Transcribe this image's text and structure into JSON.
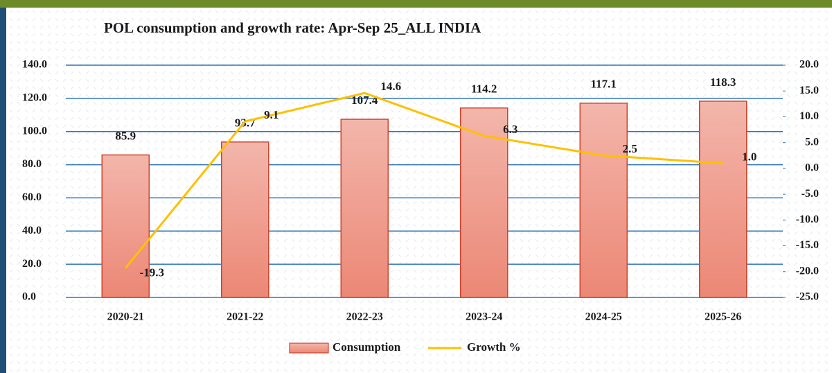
{
  "chart_data": {
    "type": "bar_line",
    "title": "POL consumption and growth rate: Apr-Sep 25_ALL INDIA",
    "categories": [
      "2020-21",
      "2021-22",
      "2022-23",
      "2023-24",
      "2024-25",
      "2025-26"
    ],
    "series": [
      {
        "name": "Consumption",
        "type": "bar",
        "color": "#ee9585",
        "axis": "y",
        "values": [
          85.9,
          93.7,
          107.4,
          114.2,
          117.1,
          118.3
        ]
      },
      {
        "name": "Growth %",
        "type": "line",
        "color": "#ffc000",
        "axis": "y2",
        "values": [
          -19.3,
          9.1,
          14.6,
          6.3,
          2.5,
          1.0
        ],
        "value_labels": [
          "-19.3",
          "9.1",
          "14.6",
          "6.3",
          "2.5",
          "1.0"
        ]
      }
    ],
    "ylim": [
      0,
      140
    ],
    "yticks": [
      {
        "value": 0,
        "label": "0.0"
      },
      {
        "value": 20,
        "label": "20.0"
      },
      {
        "value": 40,
        "label": "40.0"
      },
      {
        "value": 60,
        "label": "60.0"
      },
      {
        "value": 80,
        "label": "80.0"
      },
      {
        "value": 100,
        "label": "100.0"
      },
      {
        "value": 120,
        "label": "120.0"
      },
      {
        "value": 140,
        "label": "140.0"
      }
    ],
    "y2lim": [
      -25,
      20
    ],
    "y2ticks": [
      {
        "value": -25,
        "label": "-25.0"
      },
      {
        "value": -20,
        "label": "-20.0"
      },
      {
        "value": -15,
        "label": "-15.0"
      },
      {
        "value": -10,
        "label": "-10.0"
      },
      {
        "value": -5,
        "label": "-5.0"
      },
      {
        "value": 0,
        "label": "0.0"
      },
      {
        "value": 5,
        "label": "5.0"
      },
      {
        "value": 10,
        "label": "10.0"
      },
      {
        "value": 15,
        "label": "15.0"
      },
      {
        "value": 20,
        "label": "20.0"
      }
    ],
    "grid": true,
    "legend": "bottom"
  }
}
